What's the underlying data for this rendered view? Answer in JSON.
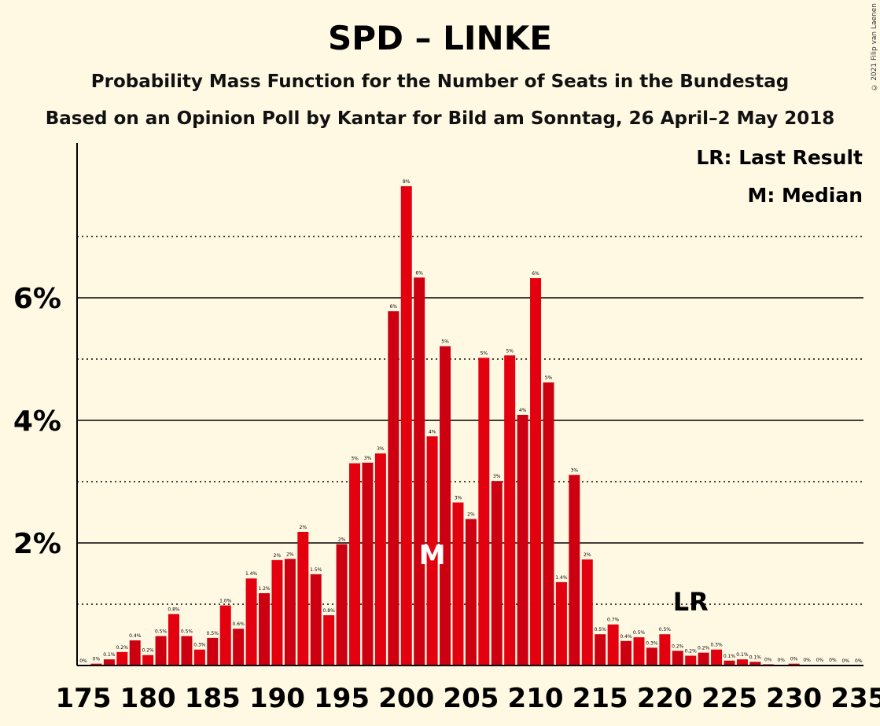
{
  "title": "SPD – LINKE",
  "subtitle1": "Probability Mass Function for the Number of Seats in the Bundestag",
  "subtitle2": "Based on an Opinion Poll by Kantar for Bild am Sonntag, 26 April–2 May 2018",
  "copyright": "© 2021 Filip van Laenen",
  "legend": {
    "lr": "LR: Last Result",
    "m": "M: Median"
  },
  "colors": {
    "bar_even": "#E3000F",
    "bar_odd": "#CC0010",
    "background": "#FFF9E3"
  },
  "chart_data": {
    "type": "bar",
    "x": [
      175,
      176,
      177,
      178,
      179,
      180,
      181,
      182,
      183,
      184,
      185,
      186,
      187,
      188,
      189,
      190,
      191,
      192,
      193,
      194,
      195,
      196,
      197,
      198,
      199,
      200,
      201,
      202,
      203,
      204,
      205,
      206,
      207,
      208,
      209,
      210,
      211,
      212,
      213,
      214,
      215,
      216,
      217,
      218,
      219,
      220,
      221,
      222,
      223,
      224,
      225,
      226,
      227,
      228,
      229,
      230,
      231,
      232,
      233,
      234,
      235
    ],
    "values": [
      0,
      0.03,
      0.1,
      0.22,
      0.41,
      0.17,
      0.48,
      0.84,
      0.48,
      0.26,
      0.45,
      0.98,
      0.6,
      1.42,
      1.18,
      1.72,
      1.74,
      2.18,
      1.49,
      0.82,
      1.98,
      3.3,
      3.31,
      3.46,
      5.78,
      7.82,
      6.33,
      3.74,
      5.21,
      2.66,
      2.39,
      5.02,
      3.01,
      5.06,
      4.09,
      6.32,
      4.62,
      1.36,
      3.11,
      1.73,
      0.51,
      0.67,
      0.4,
      0.46,
      0.29,
      0.51,
      0.24,
      0.16,
      0.21,
      0.26,
      0.08,
      0.1,
      0.06,
      0.02,
      0.01,
      0.03,
      0.01,
      0.01,
      0.01,
      0,
      0
    ],
    "labels": [
      "0%",
      "0%",
      "0.1%",
      "0.2%",
      "0.4%",
      "0.2%",
      "0.5%",
      "0.8%",
      "0.5%",
      "0.3%",
      "0.5%",
      "1.0%",
      "0.6%",
      "1.4%",
      "1.2%",
      "2%",
      "2%",
      "2%",
      "1.5%",
      "0.8%",
      "2%",
      "3%",
      "3%",
      "3%",
      "6%",
      "8%",
      "6%",
      "4%",
      "5%",
      "3%",
      "2%",
      "5%",
      "3%",
      "5%",
      "4%",
      "6%",
      "5%",
      "1.4%",
      "3%",
      "2%",
      "0.5%",
      "0.7%",
      "0.4%",
      "0.5%",
      "0.3%",
      "0.5%",
      "0.2%",
      "0.2%",
      "0.2%",
      "0.3%",
      "0.1%",
      "0.1%",
      "0.1%",
      "0%",
      "0%",
      "0%",
      "0%",
      "0%",
      "0%",
      "0%",
      "0%"
    ],
    "x_ticks": [
      "175",
      "180",
      "185",
      "190",
      "195",
      "200",
      "205",
      "210",
      "215",
      "220",
      "225",
      "230",
      "235"
    ],
    "y_ticks": [
      "2%",
      "4%",
      "6%"
    ],
    "ylim": [
      0,
      8
    ],
    "median_seat": 202,
    "median_label": "M",
    "last_result_seat": 222,
    "last_result_label": "LR"
  }
}
